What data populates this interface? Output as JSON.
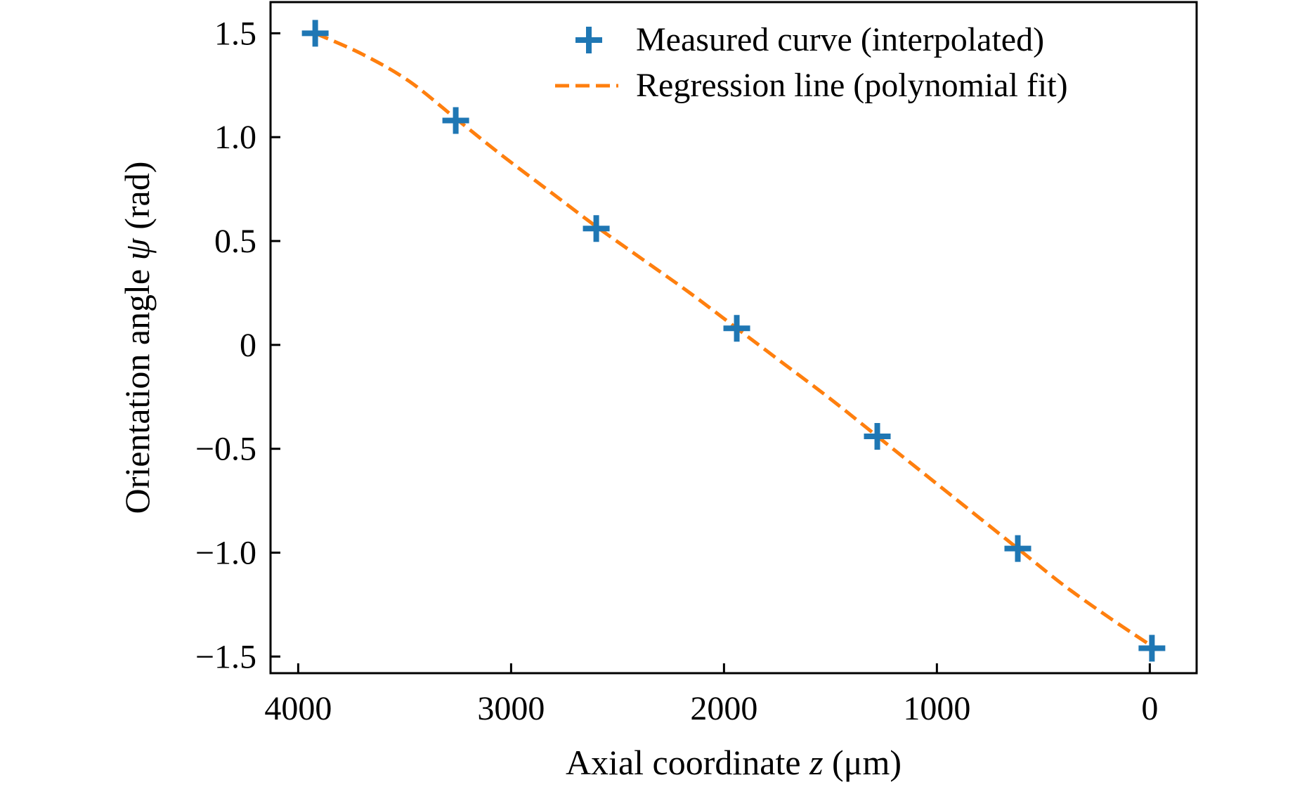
{
  "chart_data": {
    "type": "scatter",
    "xlabel_parts": [
      "Axial coordinate ",
      "z",
      " (μm)"
    ],
    "ylabel_parts": [
      "Orientation angle ",
      "ψ",
      " (rad)"
    ],
    "xlim": [
      4130,
      -220
    ],
    "ylim": [
      -1.58,
      1.65
    ],
    "x_inverted": true,
    "x_ticks": [
      4000,
      3000,
      2000,
      1000,
      0
    ],
    "x_tick_labels": [
      "4000",
      "3000",
      "2000",
      "1000",
      "0"
    ],
    "y_ticks": [
      1.5,
      1.0,
      0.5,
      0,
      -0.5,
      -1.0,
      -1.5
    ],
    "y_tick_labels": [
      "1.5",
      "1.0",
      "0.5",
      "0",
      "−0.5",
      "−1.0",
      "−1.5"
    ],
    "grid": false,
    "legend_position": "top-right",
    "series": [
      {
        "name": "Measured curve (interpolated)",
        "kind": "markers",
        "marker": "plus",
        "color": "#1f77b4",
        "x": [
          3920,
          3260,
          2600,
          1940,
          1280,
          620,
          -10
        ],
        "y": [
          1.5,
          1.08,
          0.56,
          0.08,
          -0.44,
          -0.98,
          -1.46
        ]
      },
      {
        "name": "Regression line (polynomial fit)",
        "kind": "line",
        "style": "dashed",
        "color": "#ff7f0e",
        "x": [
          3920,
          3700,
          3480,
          3260,
          3040,
          2820,
          2600,
          2380,
          2160,
          1940,
          1720,
          1500,
          1280,
          1060,
          840,
          620,
          400,
          180,
          -10
        ],
        "y": [
          1.5,
          1.4,
          1.27,
          1.09,
          0.91,
          0.74,
          0.57,
          0.41,
          0.25,
          0.08,
          -0.09,
          -0.26,
          -0.44,
          -0.62,
          -0.8,
          -0.98,
          -1.16,
          -1.32,
          -1.45
        ]
      }
    ]
  }
}
